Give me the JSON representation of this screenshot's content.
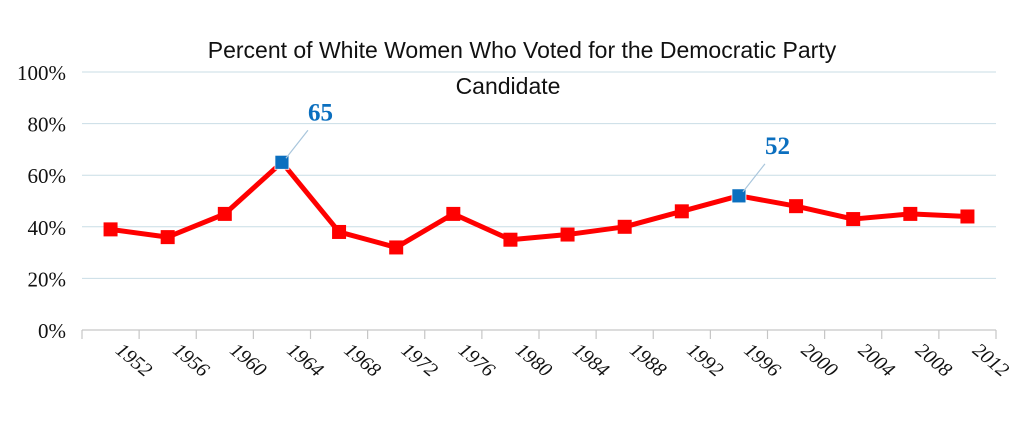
{
  "chart_data": {
    "type": "line",
    "title": [
      "Percent of White Women Who Voted for the Democratic Party",
      "Candidate"
    ],
    "xlabel": "",
    "ylabel": "",
    "categories": [
      "1952",
      "1956",
      "1960",
      "1964",
      "1968",
      "1972",
      "1976",
      "1980",
      "1984",
      "1988",
      "1992",
      "1996",
      "2000",
      "2004",
      "2008",
      "2012"
    ],
    "y_ticks": [
      "0%",
      "20%",
      "40%",
      "60%",
      "80%",
      "100%"
    ],
    "ylim": [
      0,
      100
    ],
    "grid": true,
    "series": [
      {
        "values": [
          39,
          36,
          45,
          65,
          38,
          32,
          45,
          35,
          37,
          40,
          46,
          52,
          48,
          43,
          45,
          44
        ],
        "color": "#ff0000",
        "highlight_color": "#0b6fbf"
      }
    ],
    "annotations": [
      {
        "category": "1964",
        "label": "65"
      },
      {
        "category": "1996",
        "label": "52"
      }
    ]
  }
}
